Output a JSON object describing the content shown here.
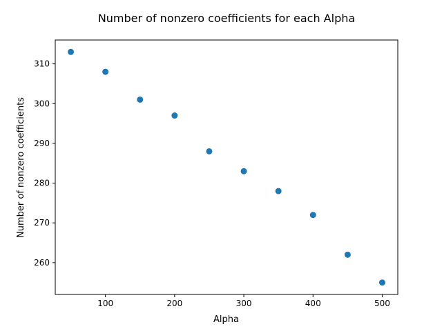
{
  "chart_data": {
    "type": "scatter",
    "title": "Number of nonzero coefficients for each Alpha",
    "xlabel": "Alpha",
    "ylabel": "Number of nonzero coefficients",
    "xlim": [
      27.5,
      522.5
    ],
    "ylim": [
      252,
      316
    ],
    "xticks": [
      100,
      200,
      300,
      400,
      500
    ],
    "yticks": [
      260,
      270,
      280,
      290,
      300,
      310
    ],
    "grid": false,
    "series": [
      {
        "color": "#1f77b4",
        "x": [
          50,
          100,
          150,
          200,
          250,
          300,
          350,
          400,
          450,
          500
        ],
        "y": [
          313,
          308,
          301,
          297,
          288,
          283,
          278,
          272,
          262,
          255
        ]
      }
    ]
  }
}
